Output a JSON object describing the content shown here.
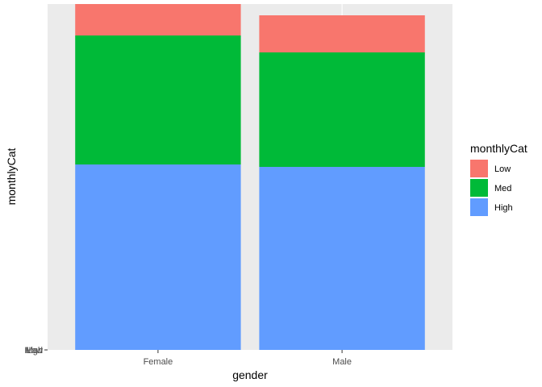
{
  "chart_data": {
    "type": "bar",
    "stacked": true,
    "categories": [
      "Female",
      "Male"
    ],
    "series": [
      {
        "name": "High",
        "color": "#619CFF",
        "values": [
          230,
          227
        ]
      },
      {
        "name": "Med",
        "color": "#00BA38",
        "values": [
          160,
          142
        ]
      },
      {
        "name": "Low",
        "color": "#F8766D",
        "values": [
          39,
          46
        ]
      }
    ],
    "xlabel": "gender",
    "ylabel": "monthlyCat",
    "y_tick_labels": [
      "High",
      "Low",
      "Med"
    ],
    "ylim": [
      0,
      429
    ],
    "grid": true,
    "legend": {
      "title": "monthlyCat",
      "order": [
        "Low",
        "Med",
        "High"
      ],
      "position": "right"
    }
  }
}
